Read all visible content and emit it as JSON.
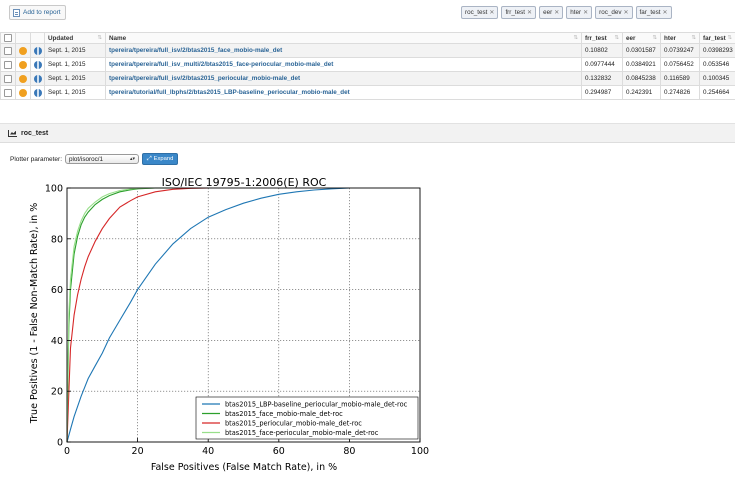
{
  "toolbar": {
    "add_to_report": "Add to report"
  },
  "tags": [
    {
      "label": "roc_test"
    },
    {
      "label": "frr_test"
    },
    {
      "label": "eer"
    },
    {
      "label": "hter"
    },
    {
      "label": "roc_dev"
    },
    {
      "label": "far_test"
    }
  ],
  "table": {
    "headers": {
      "updated": "Updated",
      "name": "Name",
      "frr_test": "frr_test",
      "eer": "eer",
      "hter": "hter",
      "far_test": "far_test"
    },
    "rows": [
      {
        "date": "Sept. 1, 2015",
        "name": "tpereira/tpereira/full_isv/2/btas2015_face_mobio-male_det",
        "frr_test": "0.10802",
        "eer": "0.0301587",
        "hter": "0.0739247",
        "far_test": "0.0398293"
      },
      {
        "date": "Sept. 1, 2015",
        "name": "tpereira/tpereira/full_isv_multi/2/btas2015_face-periocular_mobio-male_det",
        "frr_test": "0.0977444",
        "eer": "0.0384921",
        "hter": "0.0756452",
        "far_test": "0.053546"
      },
      {
        "date": "Sept. 1, 2015",
        "name": "tpereira/tpereira/full_isv/2/btas2015_periocular_mobio-male_det",
        "frr_test": "0.132832",
        "eer": "0.0845238",
        "hter": "0.116589",
        "far_test": "0.100345"
      },
      {
        "date": "Sept. 1, 2015",
        "name": "tpereira/tutorial/full_lbphs/2/btas2015_LBP-baseline_periocular_mobio-male_det",
        "frr_test": "0.294987",
        "eer": "0.242391",
        "hter": "0.274826",
        "far_test": "0.254664"
      }
    ]
  },
  "panel": {
    "title": "roc_test",
    "plotter_label": "Plotter parameter:",
    "plotter_value": "plot/isoroc/1",
    "expand_label": "Expand"
  },
  "chart_data": {
    "type": "line",
    "title": "ISO/IEC 19795-1:2006(E) ROC",
    "xlabel": "False Positives (False Match Rate), in %",
    "ylabel": "True Positives (1 - False Non-Match Rate), in %",
    "xlim": [
      0,
      100
    ],
    "ylim": [
      0,
      100
    ],
    "xticks": [
      0,
      20,
      40,
      60,
      80,
      100
    ],
    "yticks": [
      0,
      20,
      40,
      60,
      80,
      100
    ],
    "grid": true,
    "legend_position": "lower-right",
    "series": [
      {
        "name": "btas2015_LBP-baseline_periocular_mobio-male_det-roc",
        "color": "#1f77b4",
        "x": [
          0,
          1,
          2,
          4,
          6,
          8,
          10,
          12,
          15,
          18,
          20,
          25,
          30,
          35,
          40,
          45,
          50,
          55,
          60,
          65,
          70,
          75,
          80
        ],
        "y": [
          0,
          5,
          10,
          18,
          25,
          30,
          35,
          41,
          48,
          55,
          60,
          70,
          78,
          84,
          88.5,
          91.5,
          94,
          96,
          97.5,
          98.5,
          99.2,
          99.7,
          100
        ]
      },
      {
        "name": "btas2015_face_mobio-male_det-roc",
        "color": "#2ca02c",
        "x": [
          0,
          0.5,
          1,
          2,
          3,
          4,
          5,
          6,
          8,
          10,
          12,
          15,
          18,
          20,
          25,
          30
        ],
        "y": [
          0,
          45,
          60,
          74,
          81,
          85.5,
          88.5,
          90.5,
          93.5,
          95.5,
          97,
          98.5,
          99.3,
          99.7,
          100,
          100
        ]
      },
      {
        "name": "btas2015_periocular_mobio-male_det-roc",
        "color": "#d62728",
        "x": [
          0,
          1,
          2,
          3,
          4,
          5,
          6,
          8,
          10,
          12,
          15,
          18,
          20,
          25,
          30,
          35,
          40
        ],
        "y": [
          0,
          37,
          50,
          58,
          64,
          69,
          73,
          79,
          84,
          88,
          92.5,
          95,
          96.5,
          98.5,
          99.5,
          99.9,
          100
        ]
      },
      {
        "name": "btas2015_face-periocular_mobio-male_det-roc",
        "color": "#98df8a",
        "x": [
          0,
          0.5,
          1,
          2,
          3,
          4,
          5,
          6,
          8,
          10,
          12,
          15,
          18,
          20,
          25
        ],
        "y": [
          0,
          50,
          64,
          77,
          83,
          87,
          90,
          92,
          94.5,
          96.5,
          97.8,
          99,
          99.6,
          99.9,
          100
        ]
      }
    ]
  }
}
